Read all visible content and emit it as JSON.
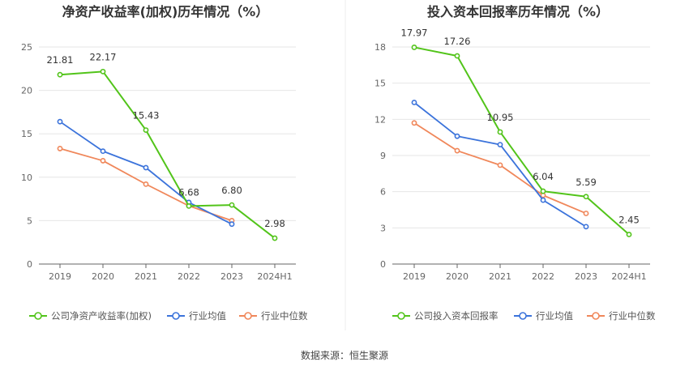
{
  "source_label": "数据来源：恒生聚源",
  "chart_data": [
    {
      "type": "line",
      "title": "净资产收益率(加权)历年情况（%）",
      "categories": [
        "2019",
        "2020",
        "2021",
        "2022",
        "2023",
        "2024H1"
      ],
      "ylim": [
        0,
        25
      ],
      "yticks": [
        0,
        5,
        10,
        15,
        20,
        25
      ],
      "grid": true,
      "legend_position": "bottom",
      "series": [
        {
          "name": "公司净资产收益率(加权)",
          "color": "#52c41a",
          "values": [
            21.81,
            22.17,
            15.43,
            6.68,
            6.8,
            2.98
          ],
          "labels": [
            "21.81",
            "22.17",
            "15.43",
            "6.68",
            "6.80",
            "2.98"
          ]
        },
        {
          "name": "行业均值",
          "color": "#3b73db",
          "values": [
            16.4,
            13.0,
            11.1,
            7.1,
            4.6,
            null
          ]
        },
        {
          "name": "行业中位数",
          "color": "#f0875a",
          "values": [
            13.3,
            11.9,
            9.2,
            6.7,
            5.0,
            null
          ]
        }
      ]
    },
    {
      "type": "line",
      "title": "投入资本回报率历年情况（%）",
      "categories": [
        "2019",
        "2020",
        "2021",
        "2022",
        "2023",
        "2024H1"
      ],
      "ylim": [
        0,
        18
      ],
      "yticks": [
        0,
        3,
        6,
        9,
        12,
        15,
        18
      ],
      "grid": true,
      "legend_position": "bottom",
      "series": [
        {
          "name": "公司投入资本回报率",
          "color": "#52c41a",
          "values": [
            17.97,
            17.26,
            10.95,
            6.04,
            5.59,
            2.45
          ],
          "labels": [
            "17.97",
            "17.26",
            "10.95",
            "6.04",
            "5.59",
            "2.45"
          ]
        },
        {
          "name": "行业均值",
          "color": "#3b73db",
          "values": [
            13.4,
            10.6,
            9.9,
            5.3,
            3.1,
            null
          ]
        },
        {
          "name": "行业中位数",
          "color": "#f0875a",
          "values": [
            11.7,
            9.4,
            8.2,
            5.7,
            4.2,
            null
          ]
        }
      ]
    }
  ]
}
